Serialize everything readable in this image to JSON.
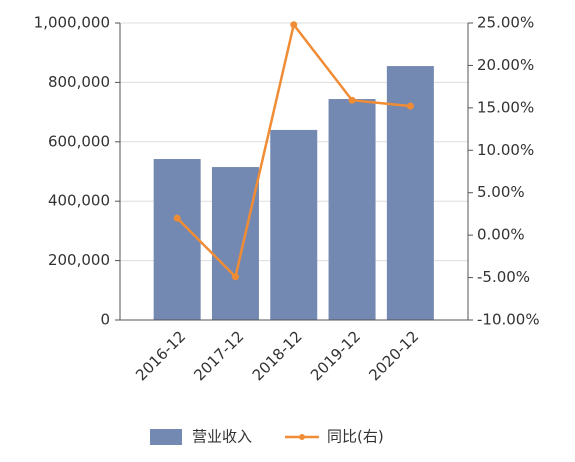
{
  "chart_data": {
    "type": "bar-line",
    "categories": [
      "2016-12",
      "2017-12",
      "2018-12",
      "2019-12",
      "2020-12"
    ],
    "series": [
      {
        "name": "营业收入",
        "type": "bar",
        "color": "#7489b1",
        "values": [
          542000,
          515000,
          640000,
          744000,
          855000
        ]
      },
      {
        "name": "同比(右)",
        "type": "line",
        "color": "#f08c35",
        "axis": "y2",
        "values": [
          2.0,
          -4.9,
          24.8,
          15.9,
          15.2
        ]
      }
    ],
    "ylim": [
      0,
      1000000
    ],
    "yticks": [
      0,
      {
        "value": 200000,
        "label": "200,000"
      },
      {
        "value": 400000,
        "label": "400,000"
      },
      {
        "value": 600000,
        "label": "600,000"
      },
      {
        "value": 800000,
        "label": "800,000"
      },
      {
        "value": 1000000,
        "label": "1,000,000"
      }
    ],
    "y2lim": [
      -10,
      25
    ],
    "y2ticks": [
      {
        "value": -10,
        "label": "-10.00%"
      },
      {
        "value": -5,
        "label": "-5.00%"
      },
      {
        "value": 0,
        "label": "0.00%"
      },
      {
        "value": 5,
        "label": "5.00%"
      },
      {
        "value": 10,
        "label": "10.00%"
      },
      {
        "value": 15,
        "label": "15.00%"
      },
      {
        "value": 20,
        "label": "20.00%"
      },
      {
        "value": 25,
        "label": "25.00%"
      }
    ],
    "grid": true
  }
}
